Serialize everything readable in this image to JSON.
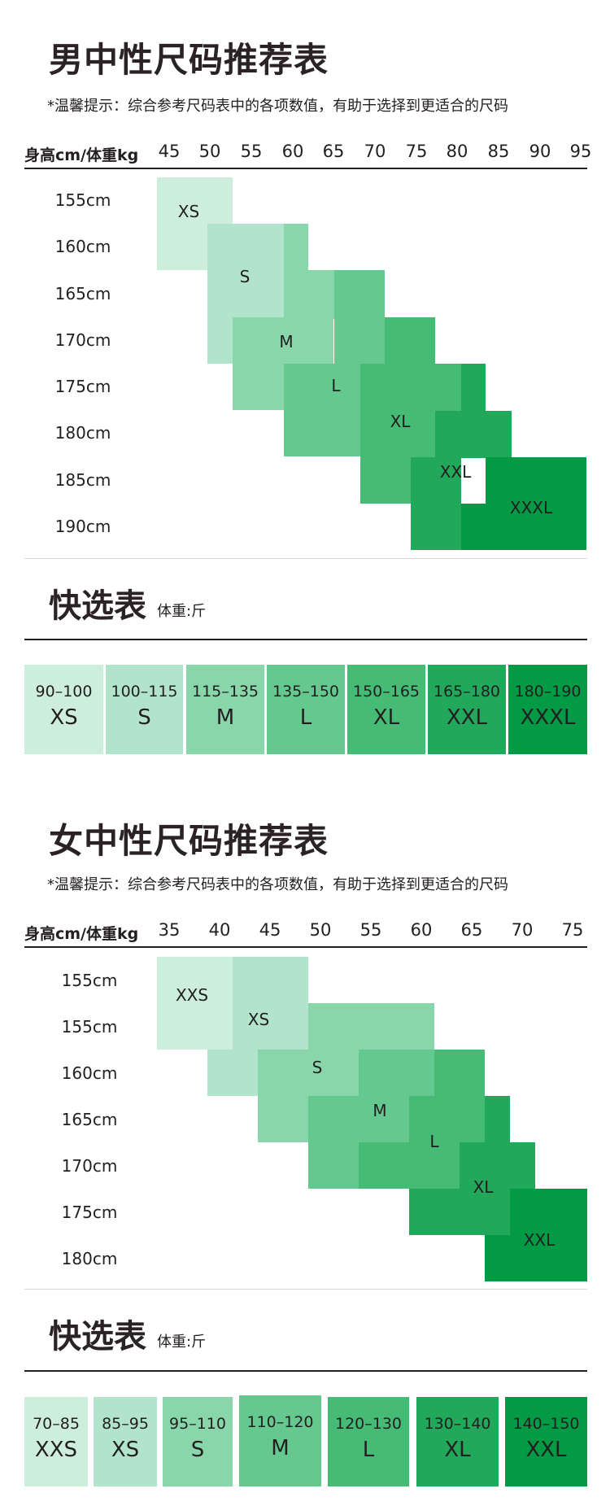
{
  "male": {
    "title": "男中性尺码推荐表",
    "tip": "*温馨提示：综合参考尺码表中的各项数值，有助于选择到更适合的尺码",
    "header_label": "身高cm/体重kg",
    "weights": [
      "45",
      "50",
      "55",
      "60",
      "65",
      "70",
      "75",
      "80",
      "85",
      "90",
      "95"
    ],
    "heights": [
      "155cm",
      "160cm",
      "165cm",
      "170cm",
      "175cm",
      "180cm",
      "185cm",
      "190cm"
    ],
    "sizes": [
      "XS",
      "S",
      "M",
      "L",
      "XL",
      "XXL",
      "XXXL"
    ],
    "quick": {
      "title": "快选表",
      "subtitle": "体重:斤",
      "items": [
        {
          "range": "90–100",
          "size": "XS"
        },
        {
          "range": "100–115",
          "size": "S"
        },
        {
          "range": "115–135",
          "size": "M"
        },
        {
          "range": "135–150",
          "size": "L"
        },
        {
          "range": "150–165",
          "size": "XL"
        },
        {
          "range": "165–180",
          "size": "XXL"
        },
        {
          "range": "180–190",
          "size": "XXXL"
        }
      ]
    }
  },
  "female": {
    "title": "女中性尺码推荐表",
    "tip": "*温馨提示：综合参考尺码表中的各项数值，有助于选择到更适合的尺码",
    "header_label": "身高cm/体重kg",
    "weights": [
      "35",
      "40",
      "45",
      "50",
      "55",
      "60",
      "65",
      "70",
      "75"
    ],
    "heights": [
      "155cm",
      "155cm",
      "160cm",
      "165cm",
      "170cm",
      "175cm",
      "180cm"
    ],
    "sizes": [
      "XXS",
      "XS",
      "S",
      "M",
      "L",
      "XL",
      "XXL"
    ],
    "quick": {
      "title": "快选表",
      "subtitle": "体重:斤",
      "items": [
        {
          "range": "70–85",
          "size": "XXS"
        },
        {
          "range": "85–95",
          "size": "XS"
        },
        {
          "range": "95–110",
          "size": "S"
        },
        {
          "range": "110–120",
          "size": "M"
        },
        {
          "range": "120–130",
          "size": "L"
        },
        {
          "range": "130–140",
          "size": "XL"
        },
        {
          "range": "140–150",
          "size": "XXL"
        }
      ]
    }
  },
  "colors": {
    "g1": "#cdeedd",
    "g2": "#b2e4cc",
    "g3": "#88d6aa",
    "g4": "#65c98f",
    "g5": "#46bb76",
    "g6": "#22a85a",
    "g7": "#039a45"
  }
}
